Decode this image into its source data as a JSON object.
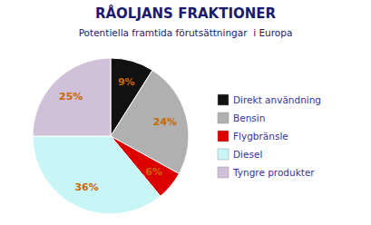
{
  "chart_data": {
    "type": "pie",
    "title": "RÅOLJANS FRAKTIONER",
    "subtitle": "Potentiella framtida förutsättningar  i Europa",
    "categories": [
      "Direkt användning",
      "Bensin",
      "Flygbränsle",
      "Diesel",
      "Tyngre produkter"
    ],
    "values": [
      9,
      24,
      6,
      36,
      25
    ],
    "value_labels": [
      "9%",
      "24%",
      "6%",
      "36%",
      "25%"
    ],
    "colors": [
      "#111111",
      "#b0b0b0",
      "#dd0000",
      "#c8f5f5",
      "#d0c0d8"
    ],
    "data_labels": true,
    "legend": "right"
  }
}
